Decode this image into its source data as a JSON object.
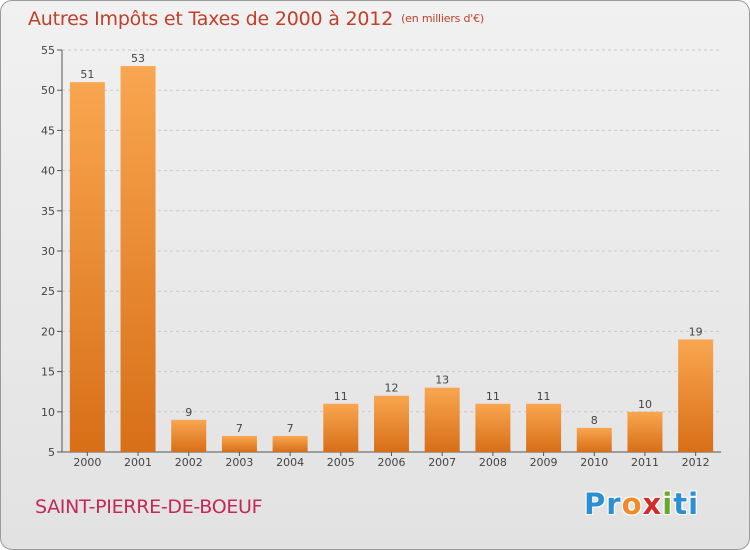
{
  "chart_data": {
    "type": "bar",
    "title": "Autres Impôts et Taxes de 2000 à 2012",
    "subtitle": "(en milliers d'€)",
    "categories": [
      "2000",
      "2001",
      "2002",
      "2003",
      "2004",
      "2005",
      "2006",
      "2007",
      "2008",
      "2009",
      "2010",
      "2011",
      "2012"
    ],
    "values": [
      51,
      53,
      9,
      7,
      7,
      11,
      12,
      13,
      11,
      11,
      8,
      10,
      19
    ],
    "ylim": [
      5,
      55
    ],
    "yticks": [
      5,
      10,
      15,
      20,
      25,
      30,
      35,
      40,
      45,
      50,
      55
    ],
    "grid": true,
    "bar_color": "#f08a2a"
  },
  "footer": {
    "city": "SAINT-PIERRE-DE-BOEUF",
    "logo_letters": [
      "P",
      "r",
      "o",
      "x",
      "i",
      "t",
      "i"
    ],
    "logo_colors": [
      "#2c8fd0",
      "#2c8fd0",
      "#f08a2a",
      "#d42a2a",
      "#6aa82c",
      "#2c8fd0",
      "#2c8fd0"
    ]
  }
}
